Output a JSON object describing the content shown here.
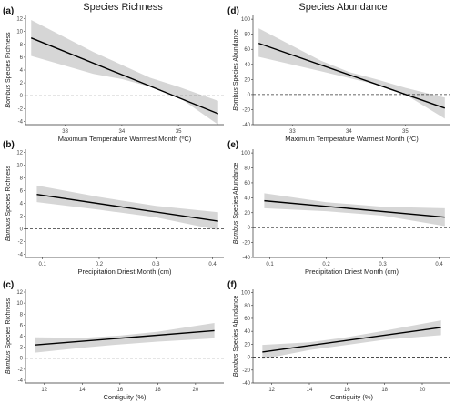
{
  "titles": {
    "left": "Species Richness",
    "right": "Species Abundance"
  },
  "chart_data": [
    {
      "panel": "(a)",
      "type": "line",
      "ylabel_italic": "Bombus",
      "ylabel_rest": " Species Richness",
      "xlabel": "Maximum Temperature Warmest Month (ºC)",
      "xlim": [
        32.3,
        35.8
      ],
      "ylim": [
        -4.5,
        12.5
      ],
      "xticks": [
        33,
        34,
        35
      ],
      "yticks": [
        -4,
        -2,
        0,
        2,
        4,
        6,
        8,
        10,
        12
      ],
      "reference_line": 0,
      "fit": {
        "x": [
          32.4,
          35.7
        ],
        "y": [
          9.0,
          -2.8
        ]
      },
      "ci_lower": {
        "x": [
          32.4,
          33.5,
          34.0,
          34.5,
          35.0,
          35.7
        ],
        "y": [
          6.2,
          3.4,
          2.6,
          1.4,
          -0.2,
          -4.5
        ]
      },
      "ci_upper": {
        "x": [
          32.4,
          33.5,
          34.0,
          34.5,
          35.0,
          35.7
        ],
        "y": [
          11.8,
          6.8,
          4.8,
          2.8,
          1.4,
          -0.8
        ]
      }
    },
    {
      "panel": "(b)",
      "type": "line",
      "ylabel_italic": "Bombus",
      "ylabel_rest": " Species Richness",
      "xlabel": "Precipitation Driest Month (cm)",
      "xlim": [
        0.07,
        0.42
      ],
      "ylim": [
        -4.5,
        12.5
      ],
      "xticks": [
        0.1,
        0.2,
        0.3,
        0.4
      ],
      "yticks": [
        -4,
        -2,
        0,
        2,
        4,
        6,
        8,
        10,
        12
      ],
      "reference_line": 0,
      "fit": {
        "x": [
          0.09,
          0.41
        ],
        "y": [
          5.4,
          1.2
        ]
      },
      "ci_lower": {
        "x": [
          0.09,
          0.2,
          0.3,
          0.41
        ],
        "y": [
          4.2,
          3.0,
          1.8,
          -0.2
        ]
      },
      "ci_upper": {
        "x": [
          0.09,
          0.2,
          0.3,
          0.41
        ],
        "y": [
          6.8,
          5.0,
          3.6,
          2.6
        ]
      }
    },
    {
      "panel": "(c)",
      "type": "line",
      "ylabel_italic": "Bombus",
      "ylabel_rest": " Species Richness",
      "xlabel": "Contiguity (%)",
      "xlim": [
        11.0,
        21.5
      ],
      "ylim": [
        -4.5,
        12.5
      ],
      "xticks": [
        12,
        14,
        16,
        18,
        20
      ],
      "yticks": [
        -4,
        -2,
        0,
        2,
        4,
        6,
        8,
        10,
        12
      ],
      "reference_line": 0,
      "fit": {
        "x": [
          11.5,
          21.0
        ],
        "y": [
          2.4,
          5.0
        ]
      },
      "ci_lower": {
        "x": [
          11.5,
          14,
          16,
          18,
          21.0
        ],
        "y": [
          1.0,
          1.9,
          2.5,
          3.0,
          3.6
        ]
      },
      "ci_upper": {
        "x": [
          11.5,
          14,
          16,
          18,
          21.0
        ],
        "y": [
          3.8,
          3.7,
          4.1,
          4.8,
          6.4
        ]
      }
    },
    {
      "panel": "(d)",
      "type": "line",
      "ylabel_italic": "Bombus",
      "ylabel_rest": " Species Abundance",
      "xlabel": "Maximum Temperature Warmest Month (ºC)",
      "xlim": [
        32.3,
        35.8
      ],
      "ylim": [
        -40,
        105
      ],
      "xticks": [
        33,
        34,
        35
      ],
      "yticks": [
        -40,
        -20,
        0,
        20,
        40,
        60,
        80,
        100
      ],
      "reference_line": 0,
      "fit": {
        "x": [
          32.4,
          35.7
        ],
        "y": [
          68,
          -18
        ]
      },
      "ci_lower": {
        "x": [
          32.4,
          33.5,
          34.0,
          34.5,
          35.0,
          35.7
        ],
        "y": [
          50,
          31,
          22,
          13,
          0,
          -32
        ]
      },
      "ci_upper": {
        "x": [
          32.4,
          33.5,
          34.0,
          34.5,
          35.0,
          35.7
        ],
        "y": [
          88,
          45,
          30,
          20,
          9,
          -4
        ]
      }
    },
    {
      "panel": "(e)",
      "type": "line",
      "ylabel_italic": "Bombus",
      "ylabel_rest": " Species Abundance",
      "xlabel": "Precipitation Driest Month (cm)",
      "xlim": [
        0.07,
        0.42
      ],
      "ylim": [
        -40,
        105
      ],
      "xticks": [
        0.1,
        0.2,
        0.3,
        0.4
      ],
      "yticks": [
        -40,
        -20,
        0,
        20,
        40,
        60,
        80,
        100
      ],
      "reference_line": 0,
      "fit": {
        "x": [
          0.09,
          0.41
        ],
        "y": [
          36,
          14
        ]
      },
      "ci_lower": {
        "x": [
          0.09,
          0.2,
          0.3,
          0.41
        ],
        "y": [
          26,
          22,
          16,
          2
        ]
      },
      "ci_upper": {
        "x": [
          0.09,
          0.2,
          0.3,
          0.41
        ],
        "y": [
          46,
          34,
          28,
          26
        ]
      }
    },
    {
      "panel": "(f)",
      "type": "line",
      "ylabel_italic": "Bombus",
      "ylabel_rest": " Species Abundance",
      "xlabel": "Contiguity (%)",
      "xlim": [
        11.0,
        21.5
      ],
      "ylim": [
        -40,
        105
      ],
      "xticks": [
        12,
        14,
        16,
        18,
        20
      ],
      "yticks": [
        -40,
        -20,
        0,
        20,
        40,
        60,
        80,
        100
      ],
      "reference_line": 0,
      "fit": {
        "x": [
          11.5,
          21.0
        ],
        "y": [
          8,
          46
        ]
      },
      "ci_lower": {
        "x": [
          11.5,
          14,
          16,
          18,
          21.0
        ],
        "y": [
          -3,
          11,
          19,
          27,
          34
        ]
      },
      "ci_upper": {
        "x": [
          11.5,
          14,
          16,
          18,
          21.0
        ],
        "y": [
          19,
          23,
          31,
          41,
          57
        ]
      }
    }
  ]
}
